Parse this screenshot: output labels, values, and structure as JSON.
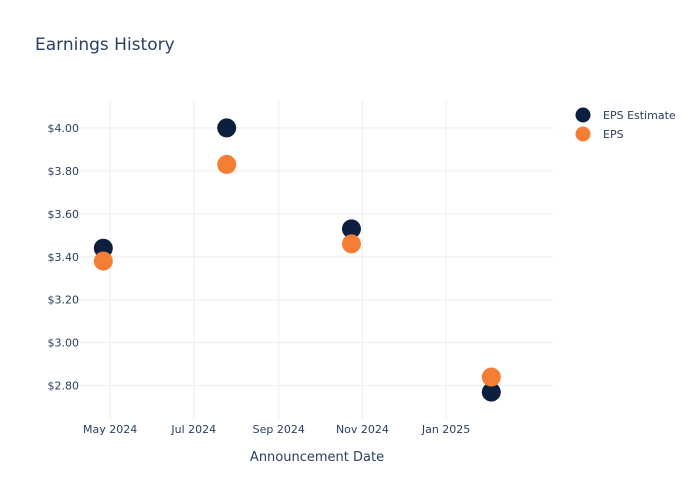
{
  "chart_data": {
    "type": "scatter",
    "title": "Earnings History",
    "xlabel": "Announcement Date",
    "ylabel": "",
    "x_ticks": [
      "May 2024",
      "Jul 2024",
      "Sep 2024",
      "Nov 2024",
      "Jan 2025"
    ],
    "y_ticks": [
      "$2.80",
      "$3.00",
      "$3.20",
      "$3.40",
      "$3.60",
      "$3.80",
      "$4.00"
    ],
    "ylim": [
      2.64,
      4.13
    ],
    "xlim": [
      "2024-04-09",
      "2025-03-20"
    ],
    "grid": true,
    "legend_position": "top-right",
    "x": [
      "2024-04-26",
      "2024-07-25",
      "2024-10-24",
      "2025-02-03"
    ],
    "series": [
      {
        "name": "EPS Estimate",
        "color": "#0d1f3f",
        "values": [
          3.44,
          4.0,
          3.53,
          2.77
        ]
      },
      {
        "name": "EPS",
        "color": "#f47f34",
        "values": [
          3.38,
          3.83,
          3.46,
          2.84
        ]
      }
    ]
  }
}
